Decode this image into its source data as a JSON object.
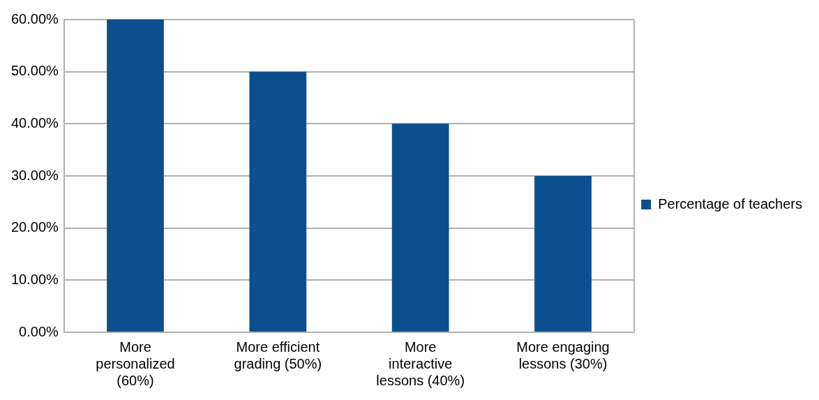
{
  "chart_data": {
    "type": "bar",
    "categories": [
      "More\npersonalized\n(60%)",
      "More efficient\ngrading (50%)",
      "More\ninteractive\nlessons (40%)",
      "More engaging\nlessons (30%)"
    ],
    "series": [
      {
        "name": "Percentage of teachers",
        "color": "#0b4f8e",
        "values": [
          60,
          50,
          40,
          30
        ]
      }
    ],
    "ylim": [
      0,
      60
    ],
    "yticks": [
      {
        "value": 0,
        "label": "0.00%"
      },
      {
        "value": 10,
        "label": "10.00%"
      },
      {
        "value": 20,
        "label": "20.00%"
      },
      {
        "value": 30,
        "label": "30.00%"
      },
      {
        "value": 40,
        "label": "40.00%"
      },
      {
        "value": 50,
        "label": "50.00%"
      },
      {
        "value": 60,
        "label": "60.00%"
      }
    ],
    "grid": "y",
    "legend": "right"
  }
}
